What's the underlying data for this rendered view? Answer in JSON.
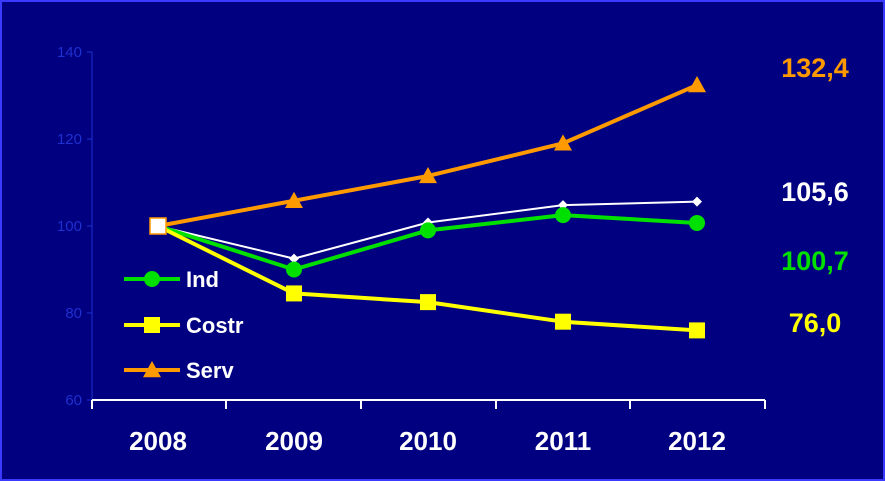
{
  "chart_data": {
    "type": "line",
    "categories": [
      "2008",
      "2009",
      "2010",
      "2011",
      "2012"
    ],
    "ylim": [
      60,
      140
    ],
    "yticks": [
      "60",
      "80",
      "100",
      "120",
      "140"
    ],
    "grid": false,
    "legend_position": "bottom-left",
    "series": [
      {
        "name": "Ind",
        "values": [
          100,
          90,
          99,
          102.5,
          100.7
        ],
        "color": "#00e000",
        "marker": "circle"
      },
      {
        "name": "Costr",
        "values": [
          100,
          84.5,
          82.5,
          78,
          76.0
        ],
        "color": "#ffff00",
        "marker": "square"
      },
      {
        "name": "Serv",
        "values": [
          100,
          105.8,
          111.5,
          119,
          132.4
        ],
        "color": "#ff9900",
        "marker": "triangle"
      },
      {
        "name": "",
        "values": [
          100,
          92.5,
          100.8,
          104.8,
          105.6
        ],
        "color": "#ffffff",
        "marker": "diamond"
      }
    ],
    "end_labels": [
      {
        "text": "132,4",
        "color": "#ff9900",
        "bold": true
      },
      {
        "text": "105,6",
        "color": "#ffffff",
        "bold": false
      },
      {
        "text": "100,7",
        "color": "#00e000",
        "bold": true
      },
      {
        "text": "76,0",
        "color": "#ffff00",
        "bold": true
      }
    ]
  }
}
